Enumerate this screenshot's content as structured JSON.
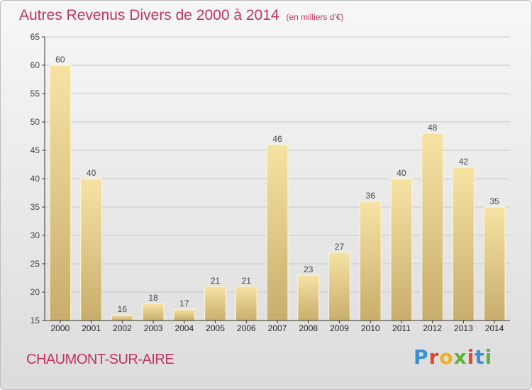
{
  "title": "Autres Revenus Divers de 2000 à 2014",
  "subtitle": "(en milliers d'€)",
  "commune": "CHAUMONT-SUR-AIRE",
  "brand": {
    "text": "Proxiti",
    "colors": [
      "#3a8fd6",
      "#e5462e",
      "#f2b01e",
      "#5bb534",
      "#e5462e",
      "#3a8fd6",
      "#5bb534"
    ]
  },
  "colors": {
    "title": "#c0345e",
    "bar_light": "#f6e3a4",
    "bar_dark": "#c9ad6c",
    "axis": "#333333",
    "grid": "#c8c8c8"
  },
  "chart_data": {
    "type": "bar",
    "categories": [
      "2000",
      "2001",
      "2002",
      "2003",
      "2004",
      "2005",
      "2006",
      "2007",
      "2008",
      "2009",
      "2010",
      "2011",
      "2012",
      "2013",
      "2014"
    ],
    "values": [
      60,
      40,
      16,
      18,
      17,
      21,
      21,
      46,
      23,
      27,
      36,
      40,
      48,
      42,
      35
    ],
    "ylim": [
      15,
      65
    ],
    "yticks": [
      15,
      20,
      25,
      30,
      35,
      40,
      45,
      50,
      55,
      60,
      65
    ],
    "grid": true,
    "data_labels": true
  }
}
